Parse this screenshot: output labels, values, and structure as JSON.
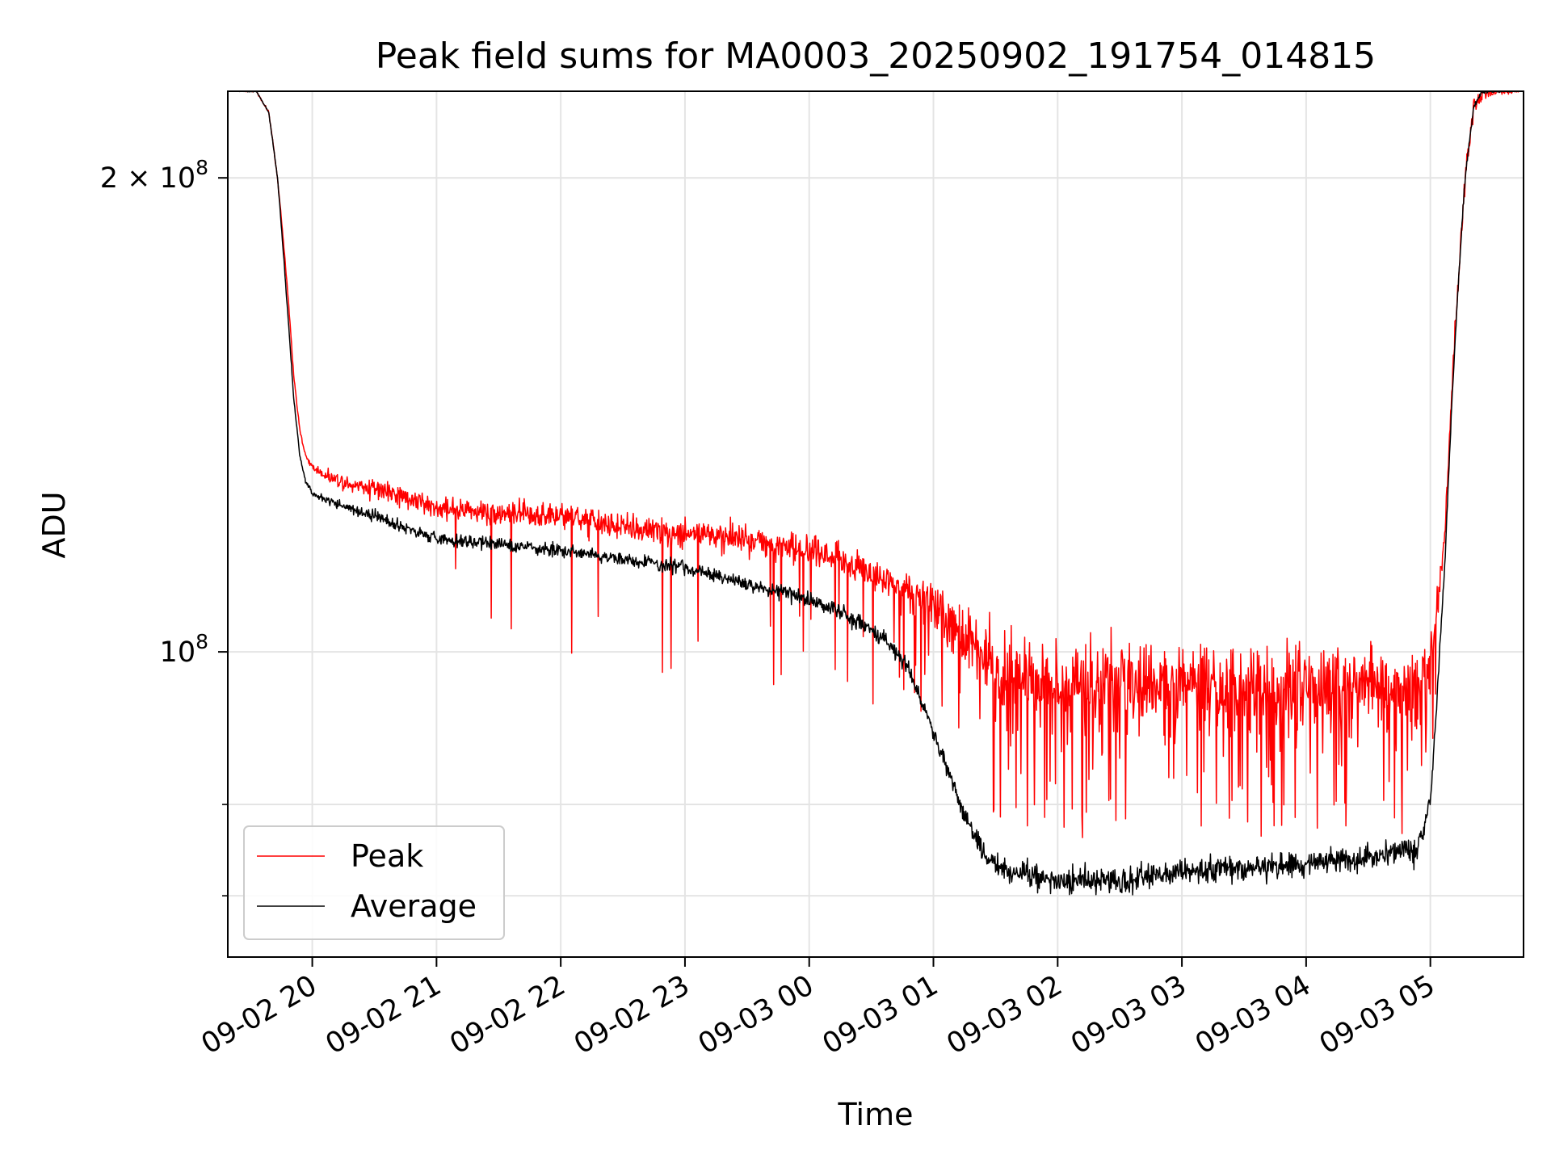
{
  "chart_data": {
    "type": "line",
    "title": "Peak field sums for MA0003_20250902_191754_014815",
    "xlabel": "Time",
    "ylabel": "ADU",
    "y_scale": "log",
    "ylim": [
      64000000,
      227000000
    ],
    "xlim_hours": [
      -0.68,
      9.75
    ],
    "grid": true,
    "legend_position": "lower-left",
    "x_ticks": [
      {
        "hours": 0,
        "label": "09-02 20"
      },
      {
        "hours": 1,
        "label": "09-02 21"
      },
      {
        "hours": 2,
        "label": "09-02 22"
      },
      {
        "hours": 3,
        "label": "09-02 23"
      },
      {
        "hours": 4,
        "label": "09-03 00"
      },
      {
        "hours": 5,
        "label": "09-03 01"
      },
      {
        "hours": 6,
        "label": "09-03 02"
      },
      {
        "hours": 7,
        "label": "09-03 03"
      },
      {
        "hours": 8,
        "label": "09-03 04"
      },
      {
        "hours": 9,
        "label": "09-03 05"
      }
    ],
    "y_major_ticks": [
      {
        "value": 100000000,
        "label": "10",
        "exp": "8",
        "prefix": ""
      },
      {
        "value": 200000000,
        "label": "10",
        "exp": "8",
        "prefix": "2 × "
      }
    ],
    "y_minor_ticks": [
      70000000,
      80000000
    ],
    "series": [
      {
        "name": "Peak",
        "color": "#ff0000",
        "noise_amplitude": [
          [
            -0.68,
            0
          ],
          [
            -0.1,
            0.3
          ],
          [
            0.4,
            1.5
          ],
          [
            1.5,
            1.8
          ],
          [
            3.0,
            2.0
          ],
          [
            4.5,
            2.3
          ],
          [
            5.2,
            4.5
          ],
          [
            5.5,
            6.0
          ],
          [
            8.9,
            6.5
          ],
          [
            9.1,
            2.0
          ],
          [
            9.75,
            0
          ]
        ],
        "dropout_rate": [
          [
            -0.68,
            0
          ],
          [
            1.0,
            0.01
          ],
          [
            3.0,
            0.025
          ],
          [
            5.0,
            0.05
          ],
          [
            5.5,
            0.1
          ],
          [
            8.9,
            0.1
          ],
          [
            9.05,
            0
          ],
          [
            9.75,
            0
          ]
        ],
        "points": [
          [
            -0.68,
            227000000
          ],
          [
            -0.45,
            227000000
          ],
          [
            -0.35,
            220000000
          ],
          [
            -0.28,
            200000000
          ],
          [
            -0.2,
            170000000
          ],
          [
            -0.15,
            150000000
          ],
          [
            -0.1,
            138000000
          ],
          [
            -0.05,
            133000000
          ],
          [
            0.0,
            131000000
          ],
          [
            0.1,
            129500000
          ],
          [
            0.3,
            128000000
          ],
          [
            0.5,
            127000000
          ],
          [
            0.8,
            125000000
          ],
          [
            1.0,
            123500000
          ],
          [
            1.5,
            122500000
          ],
          [
            2.0,
            122000000
          ],
          [
            2.5,
            120000000
          ],
          [
            3.0,
            119000000
          ],
          [
            3.5,
            118000000
          ],
          [
            4.0,
            116000000
          ],
          [
            4.3,
            114000000
          ],
          [
            4.6,
            111500000
          ],
          [
            4.9,
            108000000
          ],
          [
            5.2,
            103000000
          ],
          [
            5.5,
            98000000
          ],
          [
            5.8,
            96000000
          ],
          [
            6.2,
            95000000
          ],
          [
            7.0,
            95000000
          ],
          [
            8.0,
            95000000
          ],
          [
            8.9,
            95000000
          ],
          [
            9.0,
            98000000
          ],
          [
            9.05,
            105000000
          ],
          [
            9.12,
            120000000
          ],
          [
            9.2,
            160000000
          ],
          [
            9.28,
            200000000
          ],
          [
            9.35,
            222000000
          ],
          [
            9.42,
            227000000
          ],
          [
            9.75,
            227000000
          ]
        ]
      },
      {
        "name": "Average",
        "color": "#000000",
        "noise_amplitude": [
          [
            -0.68,
            0
          ],
          [
            -0.1,
            0.3
          ],
          [
            0.3,
            0.8
          ],
          [
            3.0,
            1.0
          ],
          [
            5.0,
            1.2
          ],
          [
            5.5,
            1.8
          ],
          [
            8.9,
            2.0
          ],
          [
            9.1,
            0.6
          ],
          [
            9.75,
            0
          ]
        ],
        "dropout_rate": [
          [
            -0.68,
            0
          ],
          [
            9.75,
            0
          ]
        ],
        "points": [
          [
            -0.68,
            227000000
          ],
          [
            -0.45,
            227000000
          ],
          [
            -0.35,
            220000000
          ],
          [
            -0.28,
            200000000
          ],
          [
            -0.2,
            165000000
          ],
          [
            -0.15,
            145000000
          ],
          [
            -0.1,
            133000000
          ],
          [
            -0.05,
            128000000
          ],
          [
            0.0,
            126000000
          ],
          [
            0.2,
            124000000
          ],
          [
            0.5,
            122000000
          ],
          [
            0.8,
            119500000
          ],
          [
            1.0,
            118000000
          ],
          [
            1.5,
            117000000
          ],
          [
            2.0,
            116000000
          ],
          [
            2.5,
            114500000
          ],
          [
            3.0,
            113000000
          ],
          [
            3.5,
            110500000
          ],
          [
            4.0,
            108000000
          ],
          [
            4.3,
            105500000
          ],
          [
            4.6,
            102000000
          ],
          [
            4.8,
            97500000
          ],
          [
            5.0,
            89000000
          ],
          [
            5.2,
            80500000
          ],
          [
            5.4,
            74500000
          ],
          [
            5.6,
            72500000
          ],
          [
            6.0,
            71500000
          ],
          [
            6.5,
            71500000
          ],
          [
            7.0,
            72500000
          ],
          [
            7.5,
            73000000
          ],
          [
            8.0,
            73500000
          ],
          [
            8.5,
            74000000
          ],
          [
            8.9,
            75000000
          ],
          [
            9.0,
            80000000
          ],
          [
            9.05,
            92000000
          ],
          [
            9.12,
            115000000
          ],
          [
            9.2,
            158000000
          ],
          [
            9.28,
            200000000
          ],
          [
            9.35,
            222000000
          ],
          [
            9.42,
            227000000
          ],
          [
            9.75,
            227000000
          ]
        ]
      }
    ]
  }
}
